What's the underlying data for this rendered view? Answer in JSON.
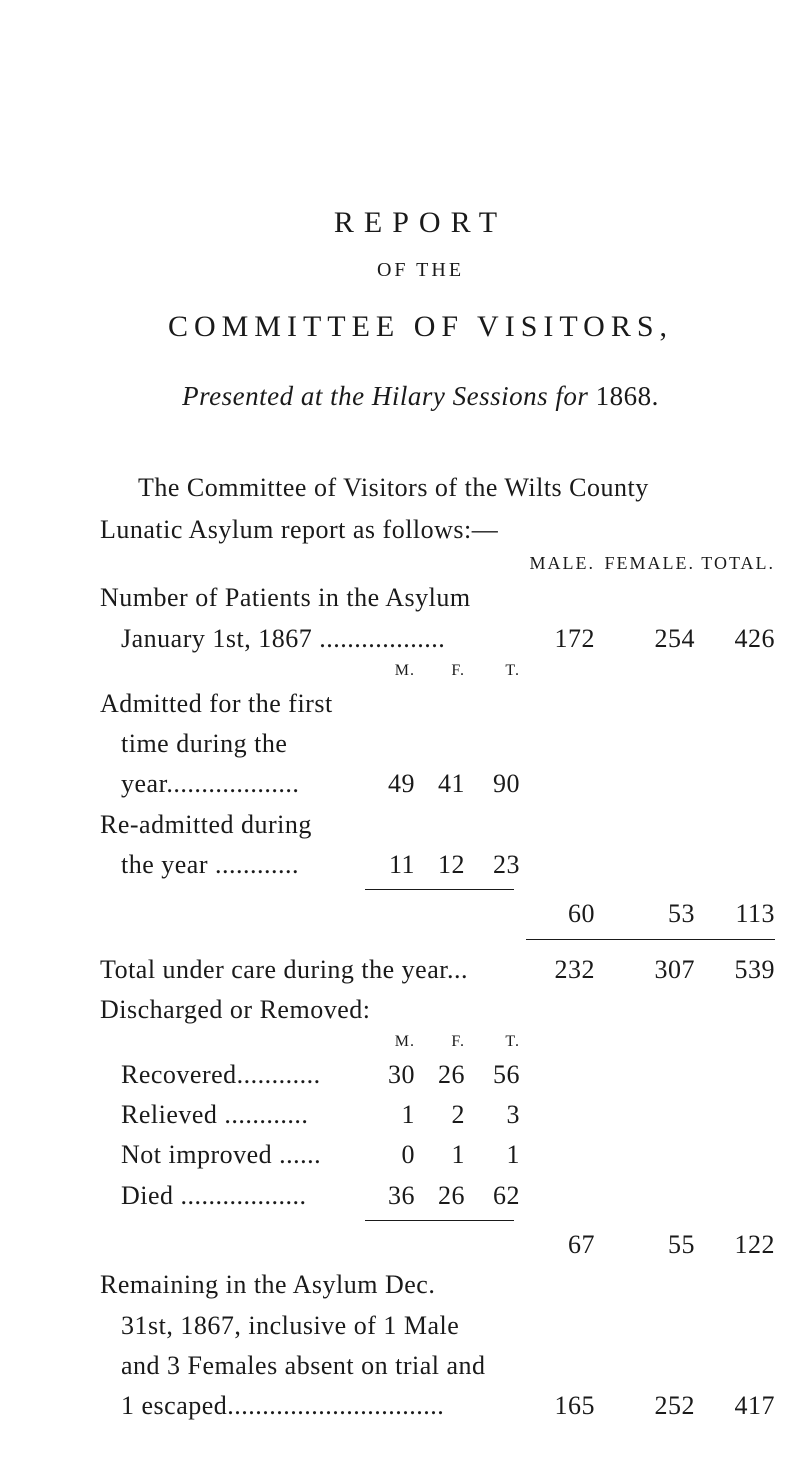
{
  "page": {
    "background_color": "#ffffff",
    "text_color": "#1a1a1a",
    "font_family": "Times New Roman",
    "body_fontsize_pt": 20
  },
  "heading": {
    "report": "REPORT",
    "of_the": "OF THE",
    "committee": "COMMITTEE OF VISITORS,",
    "presented_prefix": "Presented at the Hilary Sessions for ",
    "presented_year": "1868."
  },
  "intro": {
    "line1": "The Committee of Visitors of the Wilts County",
    "line2": "Lunatic Asylum report as follows:—"
  },
  "col_headers_main": {
    "male": "MALE.",
    "female": "FEMALE.",
    "total": "TOTAL."
  },
  "col_headers_sub": {
    "m": "M.",
    "f": "F.",
    "t": "T."
  },
  "asylum_number": {
    "label1": "Number of Patients in the Asylum",
    "label2_pre": "January 1st, 1867 ",
    "dots": "..................",
    "male": 172,
    "female": 254,
    "total": 426
  },
  "admitted": {
    "line1": "Admitted for the first",
    "line2": "time during the",
    "line3_pre": "year",
    "line3_dots": "...................",
    "m": 49,
    "f": 41,
    "t": 90
  },
  "readmitted": {
    "line1": "Re-admitted during",
    "line2_pre": "the year ",
    "line2_dots": "............",
    "m": 11,
    "f": 12,
    "t": 23
  },
  "subtotal_admissions": {
    "male": 60,
    "female": 53,
    "total": 113
  },
  "total_under_care": {
    "label": "Total under care during the year...",
    "male": 232,
    "female": 307,
    "total": 539
  },
  "discharged_header": "Discharged or Removed:",
  "recovered": {
    "label_pre": "Recovered",
    "dots": "............",
    "m": 30,
    "f": 26,
    "t": 56
  },
  "relieved": {
    "label_pre": "Relieved ",
    "dots": "............",
    "m": 1,
    "f": 2,
    "t": 3
  },
  "notimproved": {
    "label_pre": "Not improved ",
    "dots": "......",
    "m": 0,
    "f": 1,
    "t": 1
  },
  "died": {
    "label_pre": "Died ",
    "dots": "..................",
    "m": 36,
    "f": 26,
    "t": 62
  },
  "subtotal_discharged": {
    "male": 67,
    "female": 55,
    "total": 122
  },
  "remaining": {
    "line1": "Remaining in the Asylum Dec.",
    "line2": "31st, 1867, inclusive of 1 Male",
    "line3": "and 3 Females absent on trial and",
    "line4_pre": "1 escaped",
    "line4_dots": "...............................",
    "male": 165,
    "female": 252,
    "total": 417
  }
}
